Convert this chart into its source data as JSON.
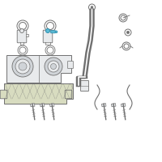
{
  "background_color": "#ffffff",
  "highlight_color": "#5bbcd6",
  "line_color": "#707070",
  "fill_light": "#e8eaec",
  "fill_mid": "#d0d4d8",
  "fill_shield": "#d8dcc0",
  "figsize": [
    2.0,
    2.0
  ],
  "dpi": 100
}
